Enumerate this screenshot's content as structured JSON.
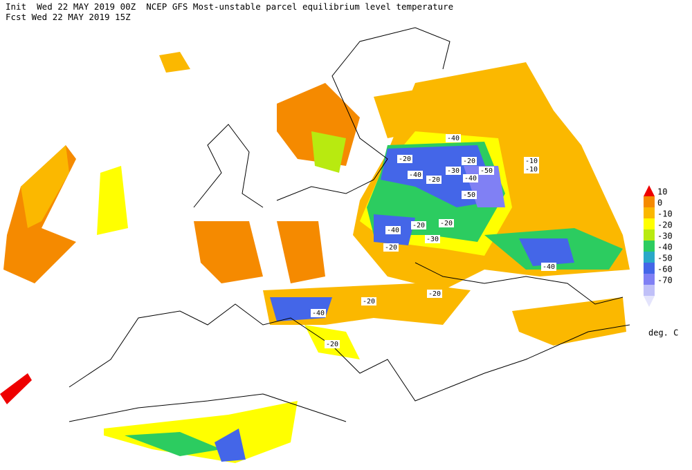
{
  "header": {
    "line1": "Init  Wed 22 MAY 2019 00Z  NCEP GFS Most-unstable parcel equilibrium level temperature",
    "line2": "Fcst Wed 22 MAY 2019 15Z"
  },
  "legend": {
    "levels": [
      "10",
      "0",
      "-10",
      "-20",
      "-30",
      "-40",
      "-50",
      "-60",
      "-70"
    ],
    "colors": [
      "#ee0000",
      "#f58a00",
      "#fbb800",
      "#ffff00",
      "#b8ea10",
      "#2ccc60",
      "#2aa8c8",
      "#4466e8",
      "#8080f4",
      "#c0c0f8",
      "#e4e4fc"
    ],
    "unit": "deg. C"
  },
  "contour_labels": [
    "-40",
    "-20",
    "-40",
    "-30",
    "-20",
    "-50",
    "-40",
    "-20",
    "-10",
    "-10",
    "-50",
    "-40",
    "-20",
    "-20",
    "-30",
    "-20",
    "-20",
    "-20",
    "-40",
    "-20",
    "-40"
  ]
}
